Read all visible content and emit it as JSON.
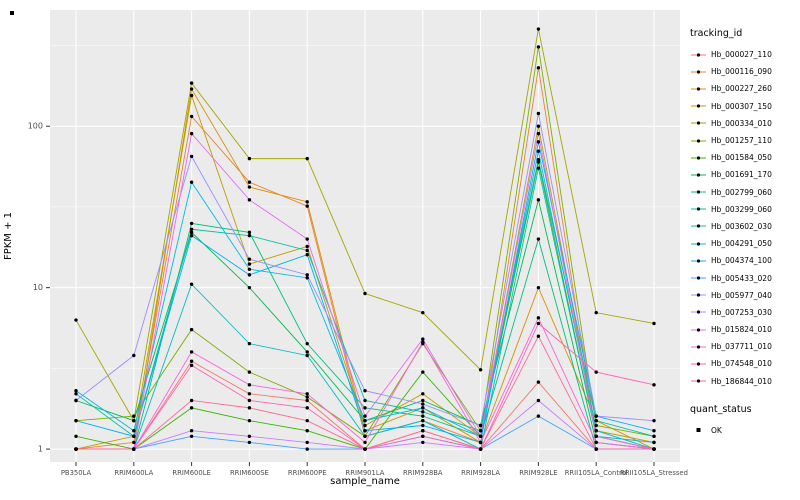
{
  "figure": {
    "y_axis_label": "FPKM + 1",
    "x_axis_label": "sample_name",
    "panel_bg": "#EBEBEB",
    "grid_color": "#FFFFFF",
    "tick_text_color": "#4D4D4D",
    "point_color": "#000000"
  },
  "legend": {
    "tracking_title": "tracking_id",
    "quant_title": "quant_status",
    "quant_items": [
      {
        "label": "OK"
      }
    ]
  },
  "chart_data": {
    "type": "line",
    "title": "",
    "xlabel": "sample_name",
    "ylabel": "FPKM + 1",
    "y_scale": "log10",
    "y_ticks": [
      1,
      10,
      100
    ],
    "ylim": [
      0.9,
      450
    ],
    "grid": true,
    "legend_position": "right",
    "categories": [
      "PB350LA",
      "RRIM600LA",
      "RRIM600LE",
      "RRIM600SE",
      "RRIM600PE",
      "RRIM901LA",
      "RRIM928BA",
      "RRIM928LA",
      "RRIM928LE",
      "RRII105LA_Control",
      "RRII105LA_Stressed"
    ],
    "series": [
      {
        "name": "Hb_000027_110",
        "color": "#F8766D",
        "values": [
          1.0,
          1.0,
          3.5,
          2.2,
          2.0,
          1.0,
          1.3,
          1.0,
          2.6,
          1.0,
          1.0
        ]
      },
      {
        "name": "Hb_000116_090",
        "color": "#EA8331",
        "values": [
          1.0,
          1.1,
          115,
          45,
          32,
          1.2,
          1.5,
          1.1,
          230,
          1.2,
          1.0
        ]
      },
      {
        "name": "Hb_000227_260",
        "color": "#D89000",
        "values": [
          1.0,
          1.0,
          170,
          42,
          34,
          1.3,
          1.8,
          1.1,
          10,
          1.5,
          1.0
        ]
      },
      {
        "name": "Hb_000307_150",
        "color": "#C09B00",
        "values": [
          1.0,
          1.2,
          155,
          14,
          18,
          1.4,
          2.2,
          1.2,
          100,
          1.3,
          1.1
        ]
      },
      {
        "name": "Hb_000334_010",
        "color": "#A3A500",
        "values": [
          6.3,
          1.5,
          185,
          63,
          63,
          9.2,
          7.0,
          3.1,
          400,
          7.0,
          6.0
        ]
      },
      {
        "name": "Hb_001257_110",
        "color": "#7CAE00",
        "values": [
          1.5,
          1.6,
          5.5,
          3.0,
          2.1,
          1.2,
          4.5,
          1.3,
          310,
          1.4,
          1.2
        ]
      },
      {
        "name": "Hb_001584_050",
        "color": "#39B600",
        "values": [
          1.2,
          1.0,
          1.8,
          1.5,
          1.3,
          1.0,
          3.0,
          1.2,
          60,
          1.2,
          1.0
        ]
      },
      {
        "name": "Hb_001691_170",
        "color": "#00BB4E",
        "values": [
          2.0,
          1.5,
          22,
          10,
          4.0,
          1.5,
          2.0,
          1.4,
          35,
          1.1,
          1.0
        ]
      },
      {
        "name": "Hb_002799_060",
        "color": "#00BF7D",
        "values": [
          1.0,
          1.0,
          25,
          22,
          4.5,
          1.8,
          1.6,
          1.2,
          20,
          1.0,
          1.0
        ]
      },
      {
        "name": "Hb_003299_060",
        "color": "#00C1A3",
        "values": [
          2.2,
          1.2,
          23,
          21,
          17,
          2.0,
          1.7,
          1.3,
          62,
          1.5,
          1.2
        ]
      },
      {
        "name": "Hb_003602_030",
        "color": "#00BFC4",
        "values": [
          1.0,
          1.0,
          10.5,
          4.5,
          3.8,
          1.2,
          1.5,
          1.0,
          55,
          1.2,
          1.1
        ]
      },
      {
        "name": "Hb_004291_050",
        "color": "#00BAE0",
        "values": [
          2.3,
          1.3,
          45,
          13,
          11.5,
          1.5,
          1.8,
          1.2,
          70,
          1.3,
          1.0
        ]
      },
      {
        "name": "Hb_004374_100",
        "color": "#00B0F6",
        "values": [
          1.5,
          1.2,
          21,
          12,
          16,
          1.3,
          1.4,
          1.1,
          80,
          1.6,
          1.3
        ]
      },
      {
        "name": "Hb_005433_020",
        "color": "#3FA2FF",
        "values": [
          1.0,
          1.0,
          1.2,
          1.1,
          1.0,
          1.0,
          1.2,
          1.0,
          1.6,
          1.0,
          1.0
        ]
      },
      {
        "name": "Hb_005977_040",
        "color": "#9590FF",
        "values": [
          2.0,
          3.8,
          65,
          15,
          12,
          2.3,
          1.9,
          1.4,
          120,
          1.6,
          1.5
        ]
      },
      {
        "name": "Hb_007253_030",
        "color": "#C77CFF",
        "values": [
          1.0,
          1.0,
          1.3,
          1.2,
          1.1,
          1.0,
          1.1,
          1.0,
          2.0,
          1.0,
          1.0
        ]
      },
      {
        "name": "Hb_015824_010",
        "color": "#E76BF3",
        "values": [
          1.0,
          1.0,
          90,
          35,
          20,
          1.6,
          4.8,
          1.2,
          90,
          1.2,
          1.0
        ]
      },
      {
        "name": "Hb_037711_010",
        "color": "#FA62DB",
        "values": [
          1.0,
          1.0,
          4.0,
          2.5,
          2.2,
          1.1,
          4.6,
          1.1,
          6.5,
          1.1,
          1.0
        ]
      },
      {
        "name": "Hb_074548_010",
        "color": "#FF62BC",
        "values": [
          1.0,
          1.0,
          3.3,
          2.0,
          1.8,
          1.0,
          1.2,
          1.0,
          6.0,
          3.0,
          2.5
        ]
      },
      {
        "name": "Hb_186844_010",
        "color": "#FF6A98",
        "values": [
          1.0,
          1.0,
          2.0,
          1.8,
          1.5,
          1.0,
          1.3,
          1.0,
          5.0,
          1.0,
          1.0
        ]
      }
    ]
  }
}
